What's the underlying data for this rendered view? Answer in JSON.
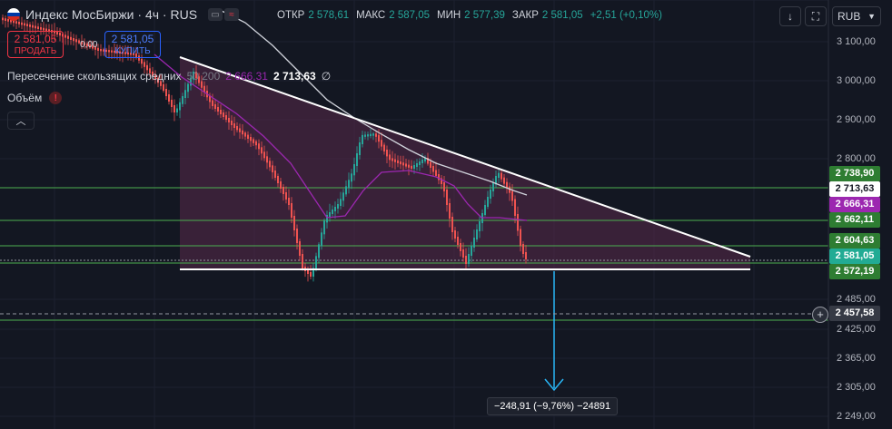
{
  "header": {
    "title": "Индекс МосБиржи · 4ч · RUS",
    "ohlc": [
      {
        "label": "ОТКР",
        "value": "2 578,61"
      },
      {
        "label": "МАКС",
        "value": "2 587,05"
      },
      {
        "label": "МИН",
        "value": "2 577,39"
      },
      {
        "label": "ЗАКР",
        "value": "2 581,05"
      },
      {
        "label": "",
        "value": "+2,51 (+0,10%)"
      }
    ]
  },
  "trade": {
    "sell_price": "2 581,05",
    "sell_label": "ПРОДАТЬ",
    "spread": "0,00",
    "buy_price": "2 581,05",
    "buy_label": "КУПИТЬ"
  },
  "indicators": {
    "ma_name": "Пересечение скользящих средних",
    "ma_params": "50 200",
    "ma_fast": "2 666,31",
    "ma_slow": "2 713,63",
    "ma_symbol": "∅",
    "volume": "Объём",
    "volume_warn": "!"
  },
  "toolbar": {
    "currency": "RUB",
    "download": "↓",
    "fullscreen": "⛶"
  },
  "price_axis": [
    "3 100,00",
    "3 000,00",
    "2 900,00",
    "2 800,00",
    "2 485,00",
    "2 425,00",
    "2 365,00",
    "2 305,00",
    "2 249,00"
  ],
  "price_labels": [
    {
      "text": "2 738,90",
      "color": "#2e7d32"
    },
    {
      "text": "2 713,63",
      "color": "#ffffff"
    },
    {
      "text": "2 666,31",
      "color": "#9c27b0"
    },
    {
      "text": "2 662,11",
      "color": "#2e7d32"
    },
    {
      "text": "2 604,63",
      "color": "#2e7d32"
    },
    {
      "text": "2 581,05",
      "color": "#22ab94"
    },
    {
      "text": "2 572,19",
      "color": "#2e7d32"
    },
    {
      "text": "2 457,58",
      "color": "#363a45"
    }
  ],
  "crosshair_plus": "+",
  "measure": {
    "text": "−248,91 (−9,76%) −24891"
  },
  "colors": {
    "up": "#26a69a",
    "down": "#ef5350",
    "ma_fast": "#9c27b0",
    "ma_slow": "#d1d4dc",
    "triangle_fill": "#5a2a4a",
    "level": "#4caf50",
    "arrow": "#29b6f6"
  }
}
